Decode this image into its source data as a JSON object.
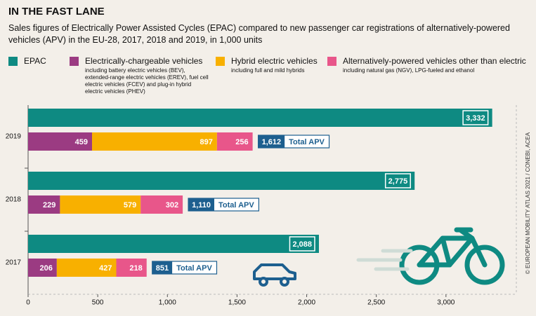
{
  "chart_data": {
    "type": "bar",
    "title": "IN THE FAST LANE",
    "subtitle": "Sales figures of Electrically Power Assisted Cycles (EPAC) compared to new passenger car registrations of alternatively-powered vehicles (APV) in the EU-28, 2017, 2018 and 2019, in 1,000 units",
    "credit": "© EUROPEAN MOBILITY ATLAS 2021 / CONEBI, ACEA",
    "categories": [
      "2019",
      "2018",
      "2017"
    ],
    "series": [
      {
        "name": "EPAC",
        "color": "#0e8a82",
        "row": "top",
        "values": [
          3332,
          2775,
          2088
        ],
        "value_labels": [
          "3,332",
          "2,775",
          "2,088"
        ]
      },
      {
        "name": "Electrically-chargeable vehicles",
        "note": "including battery electric vehicles (BEV), extended-range electric vehicles (EREV), fuel cell electric vehicles (FCEV) and plug-in hybrid electric vehicles (PHEV)",
        "color": "#9b3b82",
        "row": "bottom",
        "values": [
          459,
          229,
          206
        ]
      },
      {
        "name": "Hybrid electric vehicles",
        "note": "including full and mild hybrids",
        "color": "#f8b000",
        "row": "bottom",
        "values": [
          897,
          579,
          427
        ]
      },
      {
        "name": "Alternatively-powered vehicles other than electric",
        "note": "including natural gas (NGV), LPG-fueled and ethanol",
        "color": "#e8568a",
        "row": "bottom",
        "values": [
          256,
          302,
          218
        ]
      }
    ],
    "totals": {
      "name": "Total APV",
      "color": "#1d5f8f",
      "values": [
        1612,
        1110,
        851
      ],
      "value_labels": [
        "1,612",
        "1,110",
        "851"
      ]
    },
    "xlim": [
      0,
      3480
    ],
    "xticks": [
      0,
      500,
      {
        "value": 1000,
        "label": "1,000"
      },
      {
        "value": 1500,
        "label": "1,500"
      },
      {
        "value": 2000,
        "label": "2,000"
      },
      {
        "value": 2500,
        "label": "2,500"
      },
      {
        "value": 3000,
        "label": "3,000"
      }
    ]
  }
}
